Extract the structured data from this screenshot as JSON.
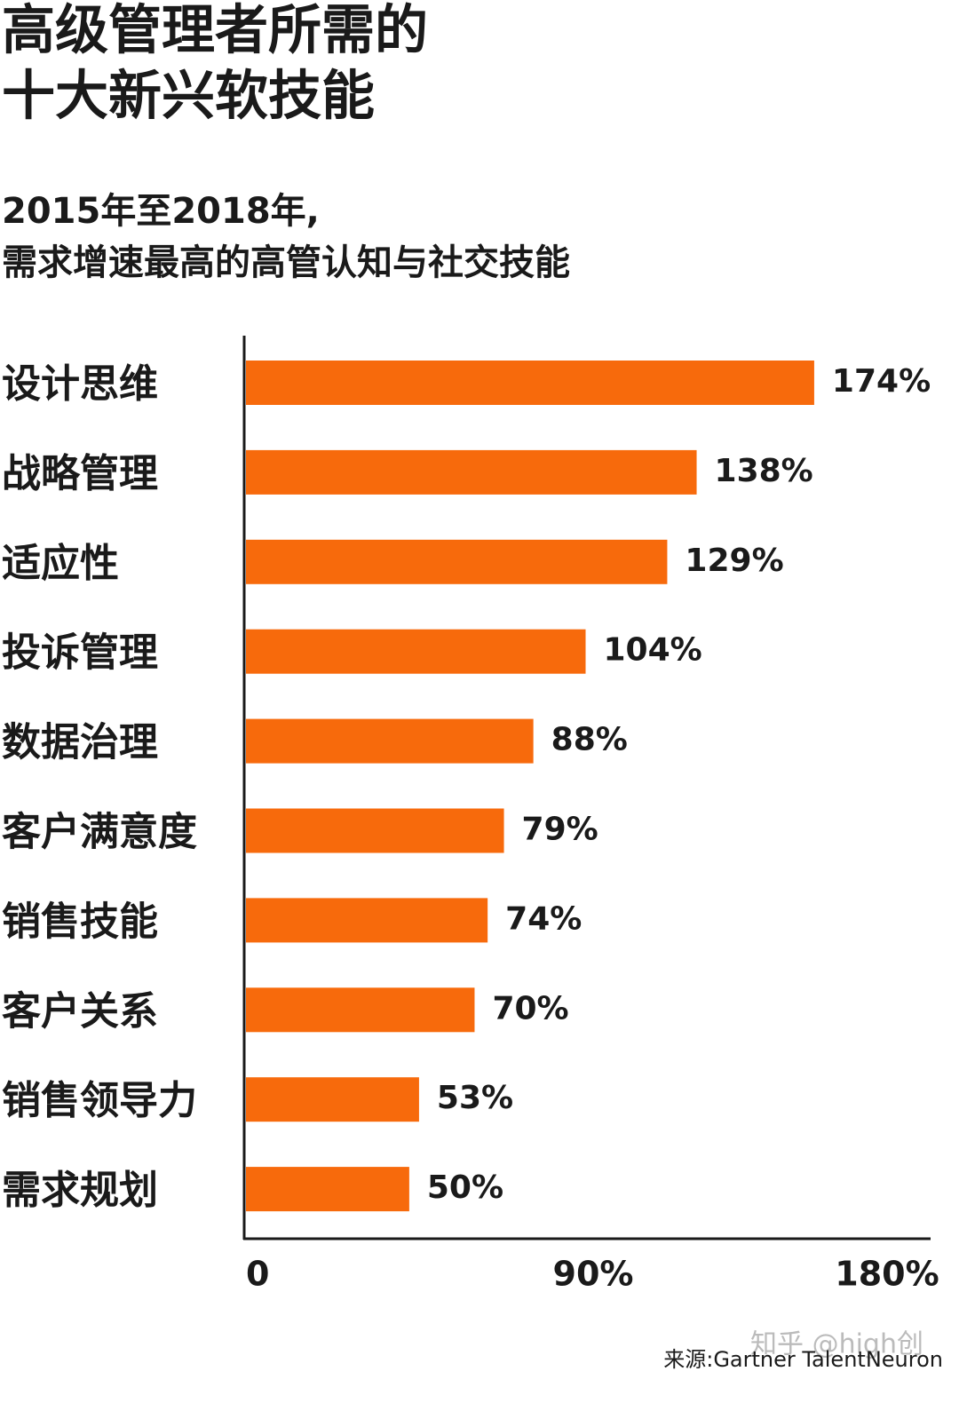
{
  "chart_data": {
    "type": "bar",
    "orientation": "horizontal",
    "title": [
      "高级管理者所需的",
      "十大新兴软技能"
    ],
    "subtitle": [
      "2015年至2018年,",
      "需求增速最高的高管认知与社交技能"
    ],
    "categories": [
      "设计思维",
      "战略管理",
      "适应性",
      "投诉管理",
      "数据治理",
      "客户满意度",
      "销售技能",
      "客户关系",
      "销售领导力",
      "需求规划"
    ],
    "values": [
      174,
      138,
      129,
      104,
      88,
      79,
      74,
      70,
      53,
      50
    ],
    "value_labels": [
      "174%",
      "138%",
      "129%",
      "104%",
      "88%",
      "79%",
      "74%",
      "70%",
      "53%",
      "50%"
    ],
    "color": "#f76a0c",
    "xlim": [
      0,
      180
    ],
    "xticks": [
      0,
      {
        "value": 90,
        "label": "90%"
      },
      {
        "value": 180,
        "label": "180%"
      }
    ],
    "grid": false,
    "source": "来源:Gartner TalentNeuron",
    "watermark": "知乎 @high创"
  }
}
